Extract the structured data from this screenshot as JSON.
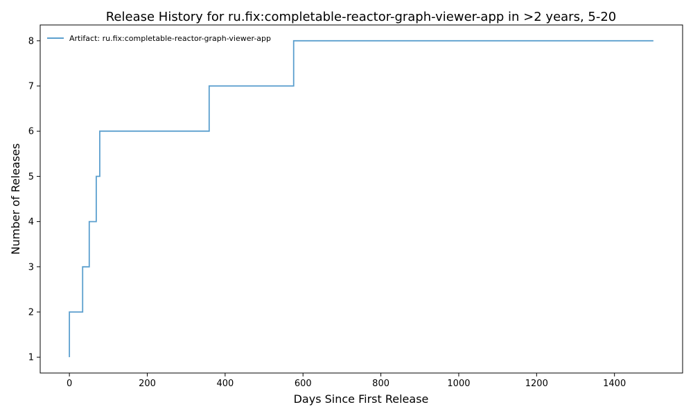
{
  "chart_data": {
    "type": "line",
    "title": "Release History for ru.fix:completable-reactor-graph-viewer-app in >2 years, 5-20",
    "xlabel": "Days Since First Release",
    "ylabel": "Number of Releases",
    "xlim": [
      -75,
      1575
    ],
    "ylim": [
      0.65,
      8.35
    ],
    "xticks": [
      0,
      200,
      400,
      600,
      800,
      1000,
      1200,
      1400
    ],
    "yticks": [
      1,
      2,
      3,
      4,
      5,
      6,
      7,
      8
    ],
    "grid": false,
    "legend_position": "top-left",
    "series": [
      {
        "name": "Artifact: ru.fix:completable-reactor-graph-viewer-app",
        "color": "#5b9fce",
        "step": "post",
        "x": [
          0,
          0,
          34,
          51,
          69,
          78,
          359,
          576,
          1500
        ],
        "y": [
          1,
          2,
          3,
          4,
          5,
          6,
          7,
          8,
          8
        ]
      }
    ]
  }
}
